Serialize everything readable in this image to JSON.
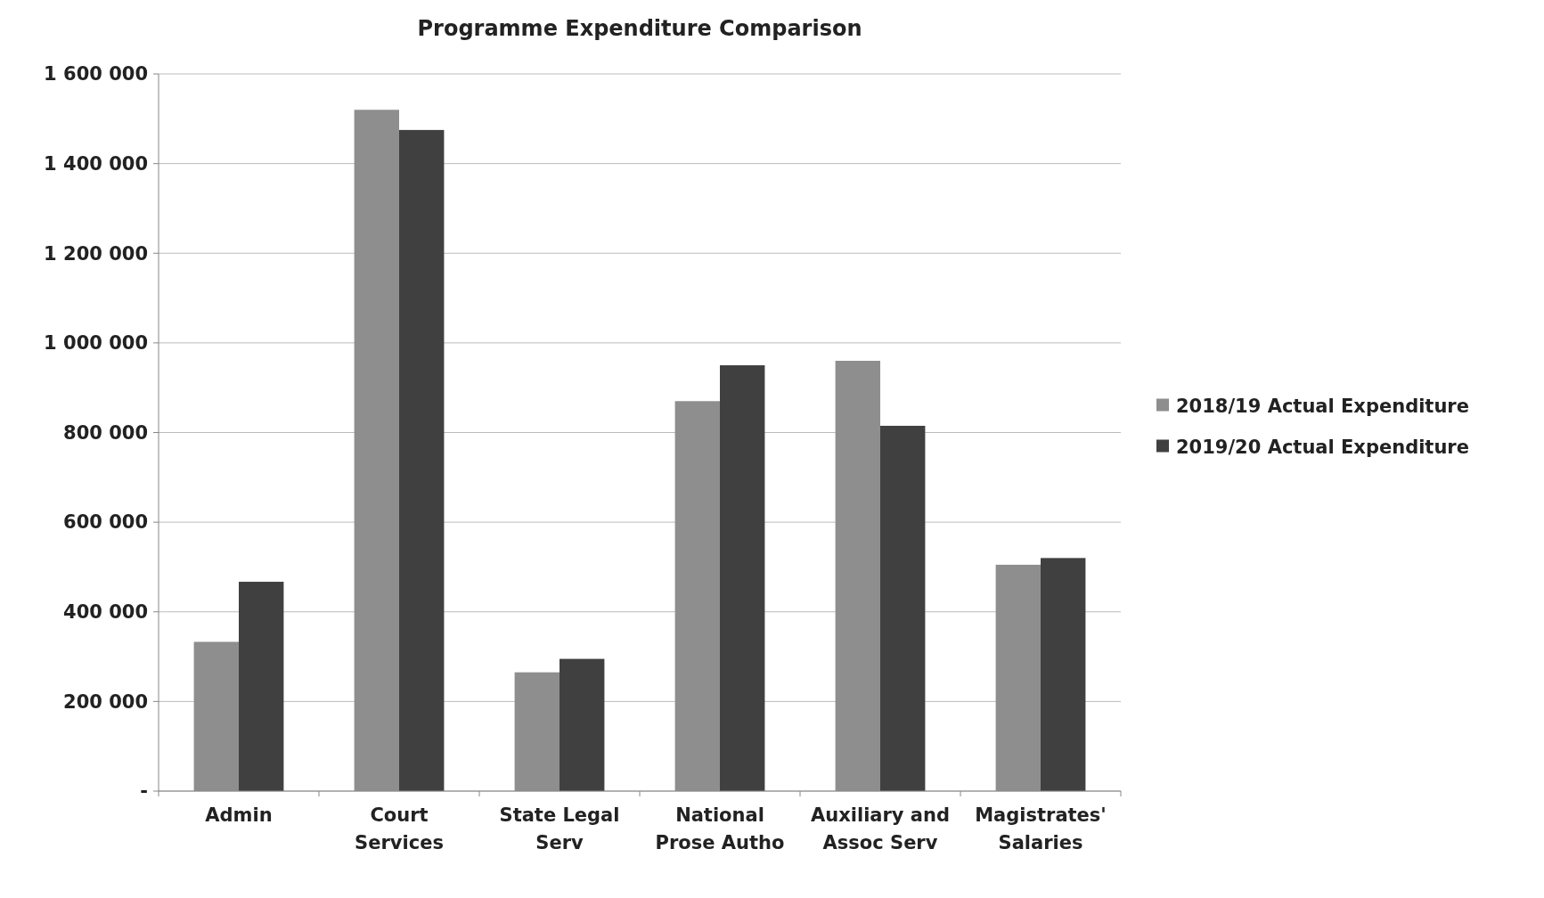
{
  "chart_data": {
    "type": "bar",
    "title": "Programme Expenditure Comparison",
    "categories": [
      "Admin",
      "Court Services",
      "State Legal Serv",
      "National Prose Autho",
      "Auxiliary and Assoc Serv",
      "Magistrates' Salaries"
    ],
    "series": [
      {
        "name": "2018/19 Actual Expenditure",
        "color": "#8e8e8e",
        "values": [
          333000,
          1520000,
          265000,
          870000,
          960000,
          505000
        ]
      },
      {
        "name": "2019/20 Actual Expenditure",
        "color": "#404040",
        "values": [
          467000,
          1475000,
          295000,
          950000,
          815000,
          520000
        ]
      }
    ],
    "ylim": [
      0,
      1600000
    ],
    "yticks": [
      {
        "value": 0,
        "label": "-"
      },
      {
        "value": 200000,
        "label": "200 000"
      },
      {
        "value": 400000,
        "label": "400 000"
      },
      {
        "value": 600000,
        "label": "600 000"
      },
      {
        "value": 800000,
        "label": "800 000"
      },
      {
        "value": 1000000,
        "label": "1 000 000"
      },
      {
        "value": 1200000,
        "label": "1 200 000"
      },
      {
        "value": 1400000,
        "label": "1 400 000"
      },
      {
        "value": 1600000,
        "label": "1 600 000"
      }
    ],
    "grid": "y",
    "legend": "right"
  }
}
